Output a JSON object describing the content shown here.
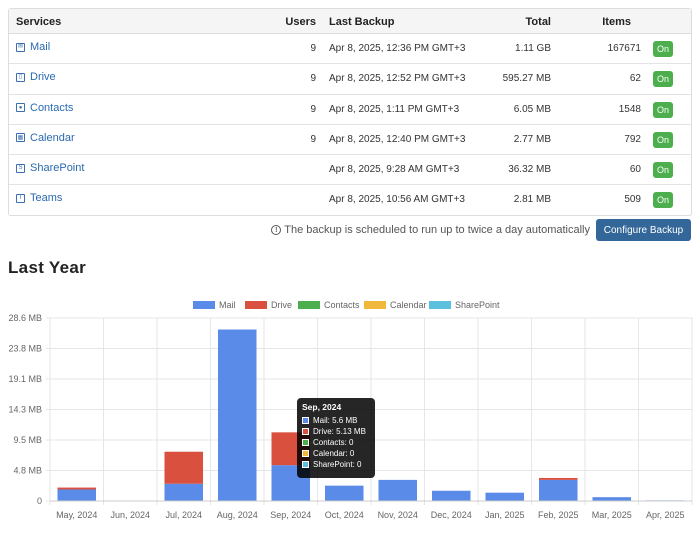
{
  "table": {
    "headers": {
      "services": "Services",
      "users": "Users",
      "last_backup": "Last Backup",
      "total": "Total",
      "items": "Items"
    },
    "rows": [
      {
        "service": "Mail",
        "icon": "mail-icon",
        "users": "9",
        "last_backup": "Apr 8, 2025, 12:36 PM GMT+3",
        "total": "1.11 GB",
        "items": "167671",
        "status": "On"
      },
      {
        "service": "Drive",
        "icon": "drive-icon",
        "users": "9",
        "last_backup": "Apr 8, 2025, 12:52 PM GMT+3",
        "total": "595.27 MB",
        "items": "62",
        "status": "On"
      },
      {
        "service": "Contacts",
        "icon": "contacts-icon",
        "users": "9",
        "last_backup": "Apr 8, 2025, 1:11 PM GMT+3",
        "total": "6.05 MB",
        "items": "1548",
        "status": "On"
      },
      {
        "service": "Calendar",
        "icon": "calendar-icon",
        "users": "9",
        "last_backup": "Apr 8, 2025, 12:40 PM GMT+3",
        "total": "2.77 MB",
        "items": "792",
        "status": "On"
      },
      {
        "service": "SharePoint",
        "icon": "sharepoint-icon",
        "users": "",
        "last_backup": "Apr 8, 2025, 9:28 AM GMT+3",
        "total": "36.32 MB",
        "items": "60",
        "status": "On"
      },
      {
        "service": "Teams",
        "icon": "teams-icon",
        "users": "",
        "last_backup": "Apr 8, 2025, 10:56 AM GMT+3",
        "total": "2.81 MB",
        "items": "509",
        "status": "On"
      }
    ]
  },
  "schedule_note": "The backup is scheduled to run up to twice a day automatically",
  "configure_button": "Configure Backup",
  "section_title": "Last Year",
  "colors": {
    "mail": "#5b8be8",
    "drive": "#d9503f",
    "contacts": "#4cae4c",
    "calendar": "#f0b93b",
    "sharepoint": "#5bc0de",
    "on_badge": "#4cae4c",
    "button": "#336699"
  },
  "chart_data": {
    "type": "bar",
    "stacked": true,
    "categories": [
      "May, 2024",
      "Jun, 2024",
      "Jul, 2024",
      "Aug, 2024",
      "Sep, 2024",
      "Oct, 2024",
      "Nov, 2024",
      "Dec, 2024",
      "Jan, 2025",
      "Feb, 2025",
      "Mar, 2025",
      "Apr, 2025"
    ],
    "series": [
      {
        "name": "Mail",
        "color": "#5b8be8",
        "values": [
          1.8,
          0,
          2.7,
          26.8,
          5.6,
          2.4,
          3.3,
          1.6,
          1.3,
          3.3,
          0.6,
          0.1
        ]
      },
      {
        "name": "Drive",
        "color": "#d9503f",
        "values": [
          0.3,
          0,
          5.0,
          0,
          5.13,
          0,
          0,
          0,
          0,
          0.3,
          0,
          0
        ]
      },
      {
        "name": "Contacts",
        "color": "#4cae4c",
        "values": [
          0,
          0,
          0,
          0,
          0,
          0,
          0,
          0,
          0,
          0,
          0,
          0
        ]
      },
      {
        "name": "Calendar",
        "color": "#f0b93b",
        "values": [
          0,
          0,
          0,
          0,
          0,
          0,
          0,
          0,
          0,
          0,
          0,
          0
        ]
      },
      {
        "name": "SharePoint",
        "color": "#5bc0de",
        "values": [
          0,
          0,
          0,
          0,
          0,
          0,
          0,
          0,
          0,
          0,
          0,
          0
        ]
      }
    ],
    "y_ticks": [
      "0",
      "4.8 MB",
      "9.5 MB",
      "14.3 MB",
      "19.1 MB",
      "23.8 MB",
      "28.6 MB"
    ],
    "ylim": [
      0,
      28.6
    ],
    "grid": true,
    "legend_position": "top"
  },
  "tooltip": {
    "title": "Sep, 2024",
    "lines": [
      {
        "text": "Mail: 5.6 MB",
        "color": "#5b8be8"
      },
      {
        "text": "Drive: 5.13 MB",
        "color": "#d9503f"
      },
      {
        "text": "Contacts: 0",
        "color": "#4cae4c"
      },
      {
        "text": "Calendar: 0",
        "color": "#f0b93b"
      },
      {
        "text": "SharePoint: 0",
        "color": "#5bc0de"
      }
    ]
  }
}
